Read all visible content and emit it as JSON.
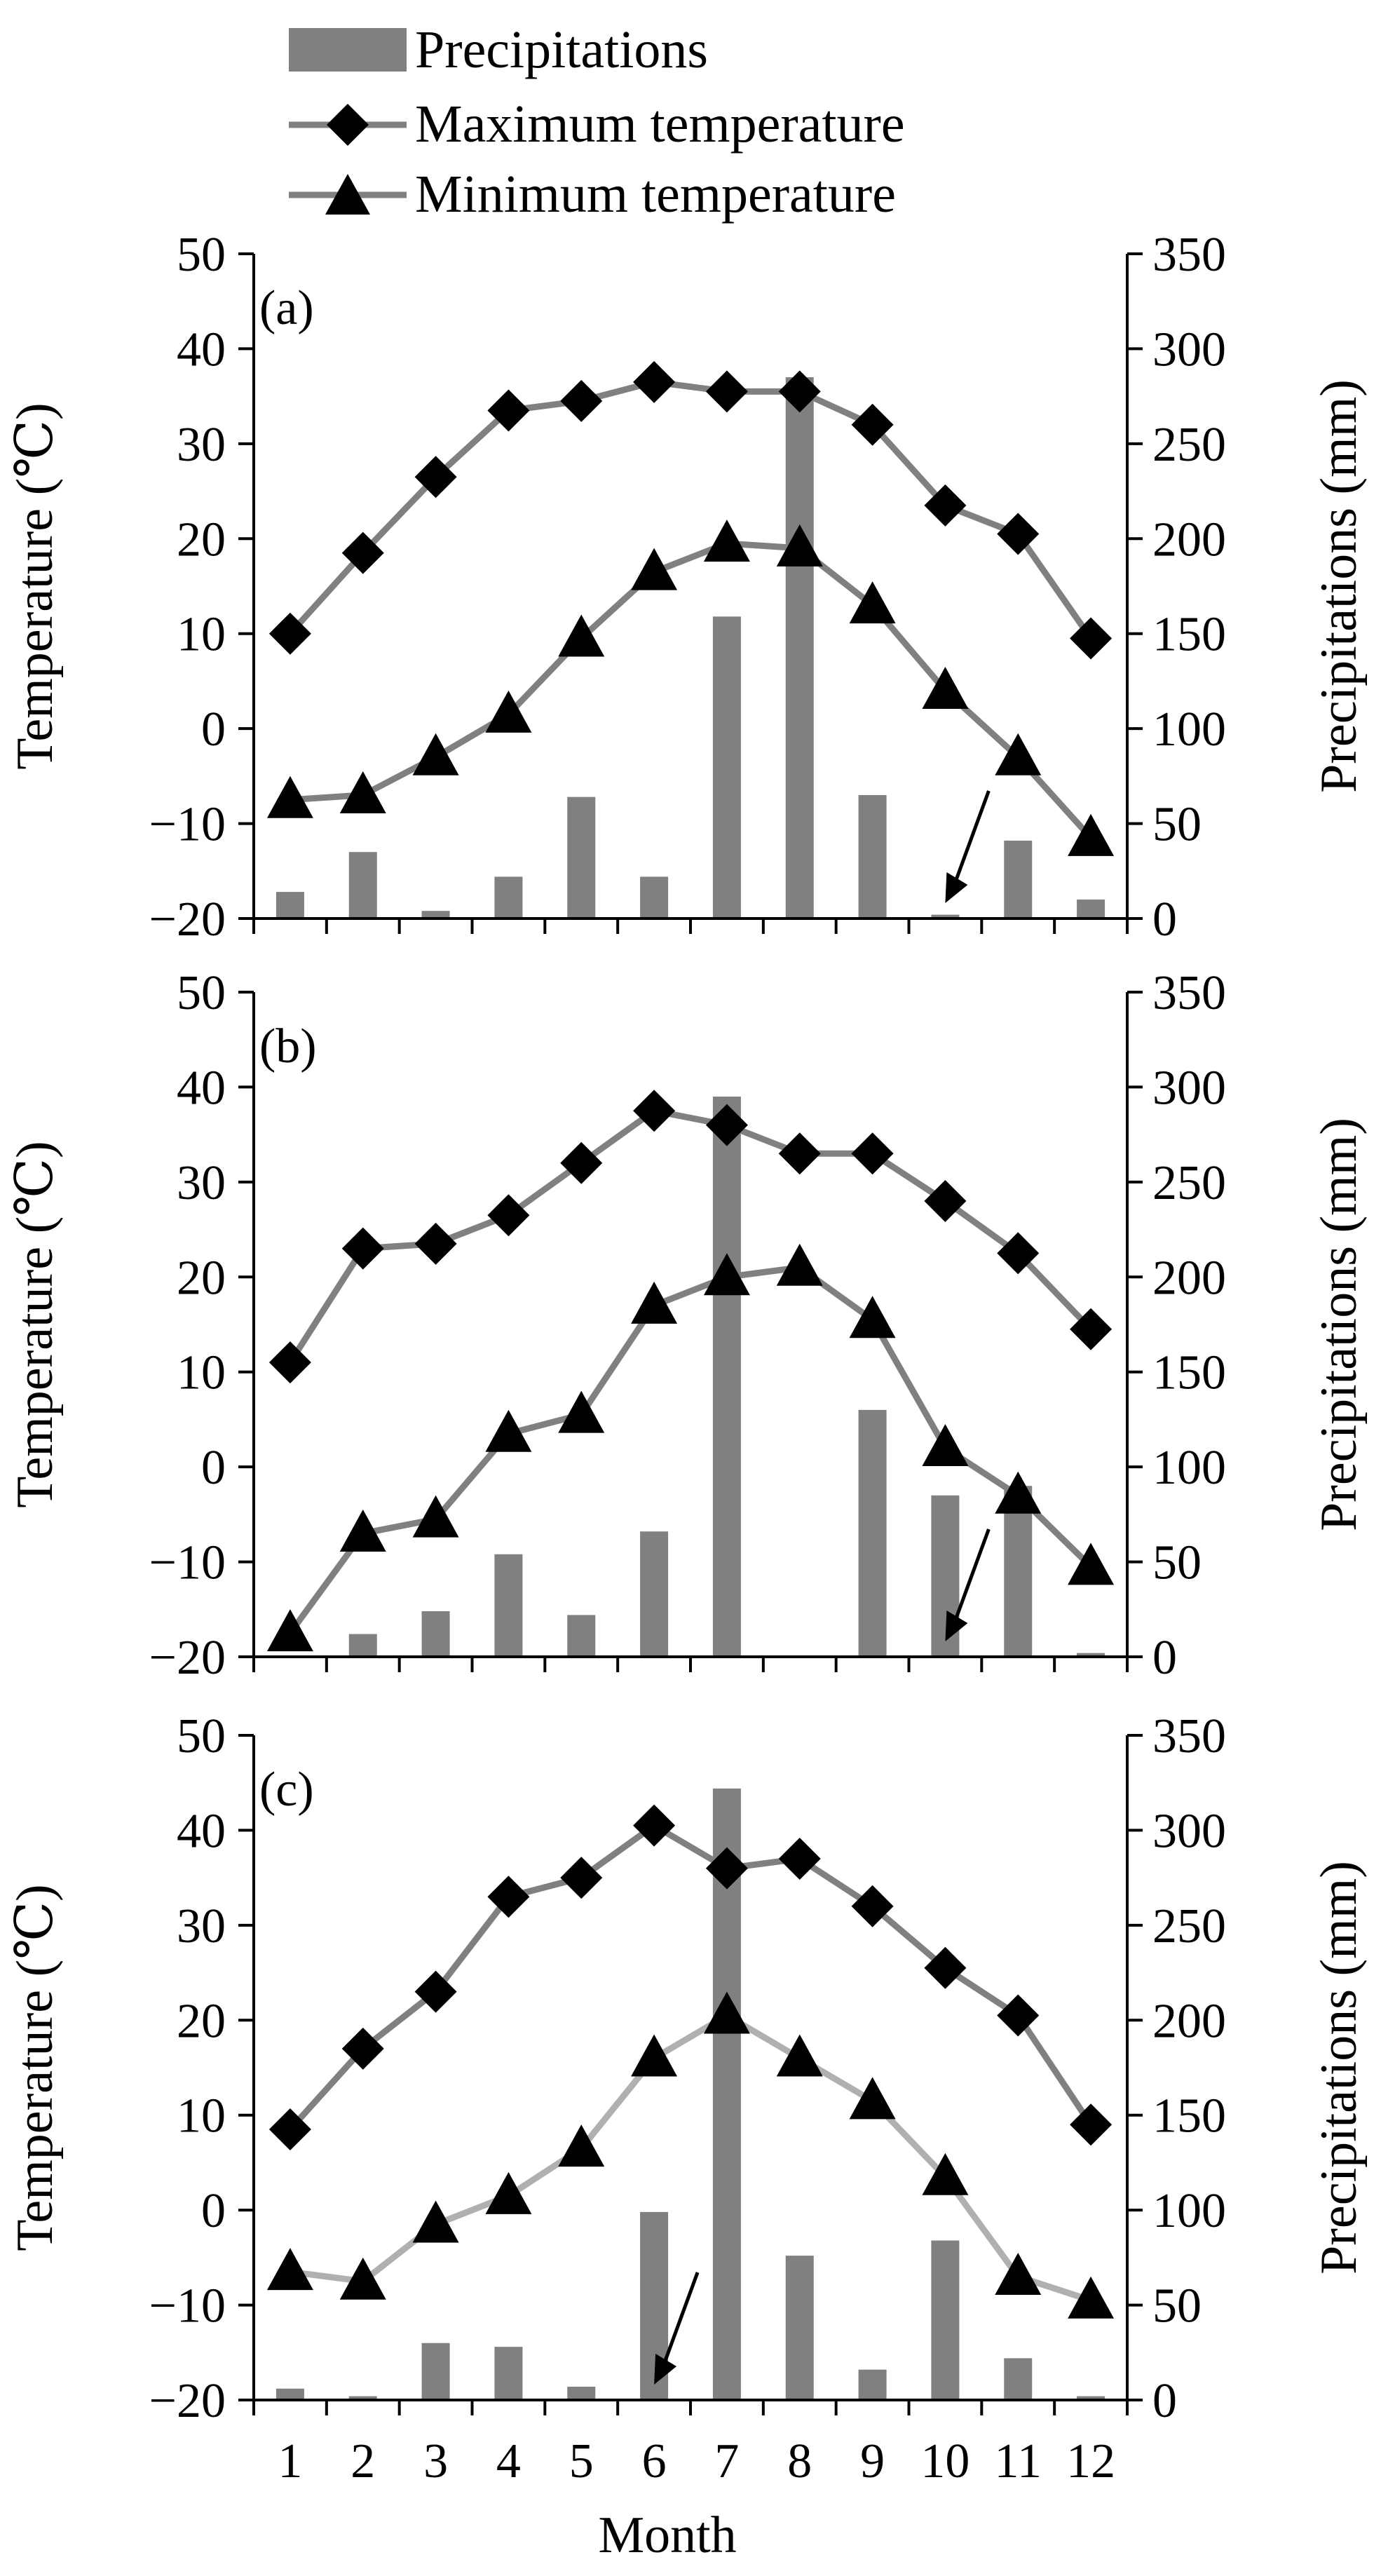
{
  "legend": {
    "precip_label": "Precipitations",
    "tmax_label": "Maximum temperature",
    "tmin_label": "Minimum temperature"
  },
  "colors": {
    "bar": "#808080",
    "tmax_line": "#808080",
    "tmin_line": "#808080",
    "tmin_line_c": "#b0b0b0",
    "marker": "#000000",
    "axis": "#000000"
  },
  "x_axis": {
    "label": "Month"
  },
  "chart_data": [
    {
      "type": "bar+line",
      "panel_label": "(a)",
      "categories": [
        "1",
        "2",
        "3",
        "4",
        "5",
        "6",
        "7",
        "8",
        "9",
        "10",
        "11",
        "12"
      ],
      "y_left": {
        "label": "Temperature (℃)",
        "range": [
          -20,
          50
        ],
        "ticks": [
          "50",
          "40",
          "30",
          "20",
          "10",
          "0",
          "−10",
          "−20"
        ]
      },
      "y_right": {
        "label": "Precipitations (mm)",
        "range": [
          0,
          350
        ],
        "ticks": [
          "350",
          "300",
          "250",
          "200",
          "150",
          "100",
          "50",
          "0"
        ]
      },
      "series": [
        {
          "name": "Precipitations",
          "axis": "right",
          "kind": "bar",
          "values": [
            14,
            35,
            4,
            22,
            64,
            22,
            159,
            285,
            65,
            2,
            41,
            10
          ]
        },
        {
          "name": "Maximum temperature",
          "axis": "left",
          "kind": "line",
          "marker": "diamond",
          "values": [
            10,
            18.5,
            26.5,
            33.5,
            34.5,
            36.5,
            35.5,
            35.5,
            32,
            23.5,
            20.5,
            9.5
          ]
        },
        {
          "name": "Minimum temperature",
          "axis": "left",
          "kind": "line",
          "marker": "triangle",
          "values": [
            -7.5,
            -7,
            -3,
            1.5,
            9.5,
            16.5,
            19.5,
            19,
            13,
            4,
            -3,
            -11.5
          ]
        }
      ],
      "annotation": {
        "type": "arrow",
        "month": "10"
      }
    },
    {
      "type": "bar+line",
      "panel_label": "(b)",
      "categories": [
        "1",
        "2",
        "3",
        "4",
        "5",
        "6",
        "7",
        "8",
        "9",
        "10",
        "11",
        "12"
      ],
      "y_left": {
        "label": "Temperature (℃)",
        "range": [
          -20,
          50
        ],
        "ticks": [
          "50",
          "40",
          "30",
          "20",
          "10",
          "0",
          "−10",
          "−20"
        ]
      },
      "y_right": {
        "label": "Precipitations (mm)",
        "range": [
          0,
          350
        ],
        "ticks": [
          "350",
          "300",
          "250",
          "200",
          "150",
          "100",
          "50",
          "0"
        ]
      },
      "series": [
        {
          "name": "Precipitations",
          "axis": "right",
          "kind": "bar",
          "values": [
            0,
            12,
            24,
            54,
            22,
            66,
            295,
            0,
            130,
            85,
            90,
            2
          ]
        },
        {
          "name": "Maximum temperature",
          "axis": "left",
          "kind": "line",
          "marker": "diamond",
          "values": [
            11,
            23,
            23.5,
            26.5,
            32,
            37.5,
            36,
            33,
            33,
            28,
            22.5,
            14.5
          ]
        },
        {
          "name": "Minimum temperature",
          "axis": "left",
          "kind": "line",
          "marker": "triangle",
          "values": [
            -17.5,
            -7,
            -5.5,
            3.5,
            5.5,
            17,
            20,
            21,
            15.5,
            2,
            -3,
            -10.5
          ]
        }
      ],
      "annotation": {
        "type": "arrow",
        "month": "10"
      }
    },
    {
      "type": "bar+line",
      "panel_label": "(c)",
      "categories": [
        "1",
        "2",
        "3",
        "4",
        "5",
        "6",
        "7",
        "8",
        "9",
        "10",
        "11",
        "12"
      ],
      "y_left": {
        "label": "Temperature (℃)",
        "range": [
          -20,
          50
        ],
        "ticks": [
          "50",
          "40",
          "30",
          "20",
          "10",
          "0",
          "−10",
          "−20"
        ]
      },
      "y_right": {
        "label": "Precipitations (mm)",
        "range": [
          0,
          350
        ],
        "ticks": [
          "350",
          "300",
          "250",
          "200",
          "150",
          "100",
          "50",
          "0"
        ]
      },
      "series": [
        {
          "name": "Precipitations",
          "axis": "right",
          "kind": "bar",
          "values": [
            6,
            2,
            30,
            28,
            7,
            99,
            322,
            76,
            16,
            84,
            22,
            2
          ]
        },
        {
          "name": "Maximum temperature",
          "axis": "left",
          "kind": "line",
          "marker": "diamond",
          "values": [
            8.5,
            17,
            23,
            33,
            35,
            40.5,
            36,
            37,
            32,
            25.5,
            20.5,
            9
          ]
        },
        {
          "name": "Minimum temperature",
          "axis": "left",
          "kind": "line",
          "marker": "triangle",
          "values": [
            -6.5,
            -7.5,
            -1.5,
            1.5,
            6.5,
            16,
            20.5,
            16,
            11.5,
            3.5,
            -7,
            -9.5
          ]
        }
      ],
      "annotation": {
        "type": "arrow",
        "month": "6"
      }
    }
  ]
}
